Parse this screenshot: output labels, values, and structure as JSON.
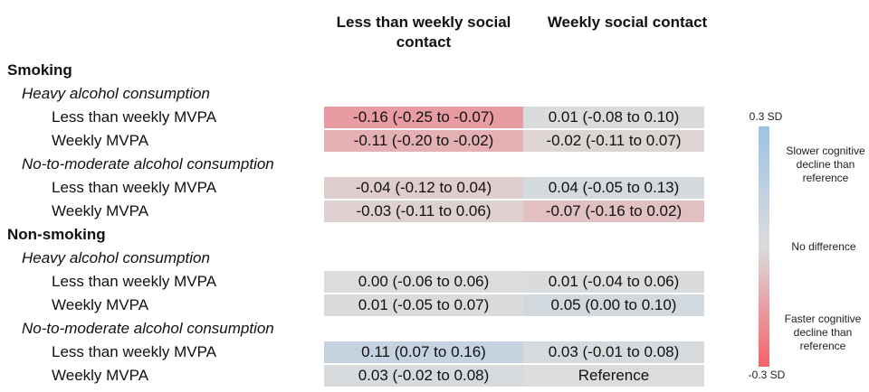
{
  "chart_data": {
    "type": "heatmap",
    "columns": [
      "Less than weekly social contact",
      "Weekly social contact"
    ],
    "rows": [
      {
        "kind": "group",
        "label": "Smoking"
      },
      {
        "kind": "subgroup",
        "label": "Heavy alcohol consumption"
      },
      {
        "kind": "data",
        "label": "Less than weekly MVPA",
        "cells": [
          {
            "text": "-0.16 (-0.25 to -0.07)",
            "value": -0.16
          },
          {
            "text": "0.01 (-0.08 to 0.10)",
            "value": 0.01
          }
        ]
      },
      {
        "kind": "data",
        "label": "Weekly MVPA",
        "cells": [
          {
            "text": "-0.11 (-0.20 to -0.02)",
            "value": -0.11
          },
          {
            "text": "-0.02 (-0.11 to 0.07)",
            "value": -0.02
          }
        ]
      },
      {
        "kind": "subgroup",
        "label": "No-to-moderate alcohol consumption"
      },
      {
        "kind": "data",
        "label": "Less than weekly MVPA",
        "cells": [
          {
            "text": "-0.04 (-0.12 to 0.04)",
            "value": -0.04
          },
          {
            "text": "0.04 (-0.05 to 0.13)",
            "value": 0.04
          }
        ]
      },
      {
        "kind": "data",
        "label": "Weekly MVPA",
        "cells": [
          {
            "text": "-0.03 (-0.11 to 0.06)",
            "value": -0.03
          },
          {
            "text": "-0.07 (-0.16 to 0.02)",
            "value": -0.07
          }
        ]
      },
      {
        "kind": "group",
        "label": "Non-smoking"
      },
      {
        "kind": "subgroup",
        "label": "Heavy alcohol consumption"
      },
      {
        "kind": "data",
        "label": "Less than weekly MVPA",
        "cells": [
          {
            "text": "0.00 (-0.06 to 0.06)",
            "value": 0.0
          },
          {
            "text": "0.01 (-0.04 to 0.06)",
            "value": 0.01
          }
        ]
      },
      {
        "kind": "data",
        "label": "Weekly MVPA",
        "cells": [
          {
            "text": "0.01 (-0.05 to 0.07)",
            "value": 0.01
          },
          {
            "text": "0.05 (0.00 to 0.10)",
            "value": 0.05
          }
        ]
      },
      {
        "kind": "subgroup",
        "label": "No-to-moderate alcohol consumption"
      },
      {
        "kind": "data",
        "label": "Less than weekly MVPA",
        "cells": [
          {
            "text": "0.11 (0.07 to 0.16)",
            "value": 0.11
          },
          {
            "text": "0.03 (-0.01 to 0.08)",
            "value": 0.03
          }
        ]
      },
      {
        "kind": "data",
        "label": "Weekly MVPA",
        "cells": [
          {
            "text": "0.03 (-0.02 to 0.08)",
            "value": 0.03
          },
          {
            "text": "Reference",
            "value": 0
          }
        ]
      }
    ],
    "scale": {
      "min": -0.3,
      "max": 0.3,
      "max_label": "0.3 SD",
      "min_label": "-0.3 SD",
      "high_desc": "Slower cognitive decline than reference",
      "mid_desc": "No difference",
      "low_desc": "Faster cognitive decline than reference",
      "colors": {
        "high": "#9cc3e6",
        "mid": "#dcdcdc",
        "low": "#f2636b"
      }
    }
  }
}
